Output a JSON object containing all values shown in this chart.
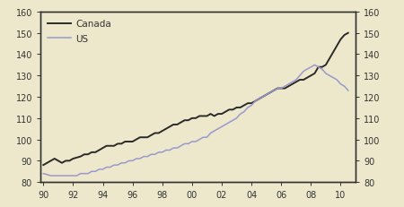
{
  "background_color": "#ede8cc",
  "canada_color": "#2a2a2a",
  "us_color": "#9999cc",
  "ylim": [
    80,
    160
  ],
  "yticks": [
    80,
    90,
    100,
    110,
    120,
    130,
    140,
    150,
    160
  ],
  "xticklabels": [
    "90",
    "92",
    "94",
    "96",
    "98",
    "00",
    "02",
    "04",
    "06",
    "08",
    "10"
  ],
  "legend_labels": [
    "Canada",
    "US"
  ],
  "canada_data": [
    [
      1990.0,
      88
    ],
    [
      1990.25,
      89
    ],
    [
      1990.5,
      90
    ],
    [
      1990.75,
      91
    ],
    [
      1991.0,
      90
    ],
    [
      1991.25,
      89
    ],
    [
      1991.5,
      90
    ],
    [
      1991.75,
      90
    ],
    [
      1992.0,
      91
    ],
    [
      1992.25,
      91.5
    ],
    [
      1992.5,
      92
    ],
    [
      1992.75,
      93
    ],
    [
      1993.0,
      93
    ],
    [
      1993.25,
      94
    ],
    [
      1993.5,
      94
    ],
    [
      1993.75,
      95
    ],
    [
      1994.0,
      96
    ],
    [
      1994.25,
      97
    ],
    [
      1994.5,
      97
    ],
    [
      1994.75,
      97
    ],
    [
      1995.0,
      98
    ],
    [
      1995.25,
      98
    ],
    [
      1995.5,
      99
    ],
    [
      1995.75,
      99
    ],
    [
      1996.0,
      99
    ],
    [
      1996.25,
      100
    ],
    [
      1996.5,
      101
    ],
    [
      1996.75,
      101
    ],
    [
      1997.0,
      101
    ],
    [
      1997.25,
      102
    ],
    [
      1997.5,
      103
    ],
    [
      1997.75,
      103
    ],
    [
      1998.0,
      104
    ],
    [
      1998.25,
      105
    ],
    [
      1998.5,
      106
    ],
    [
      1998.75,
      107
    ],
    [
      1999.0,
      107
    ],
    [
      1999.25,
      108
    ],
    [
      1999.5,
      109
    ],
    [
      1999.75,
      109
    ],
    [
      2000.0,
      110
    ],
    [
      2000.25,
      110
    ],
    [
      2000.5,
      111
    ],
    [
      2000.75,
      111
    ],
    [
      2001.0,
      111
    ],
    [
      2001.25,
      112
    ],
    [
      2001.5,
      111
    ],
    [
      2001.75,
      112
    ],
    [
      2002.0,
      112
    ],
    [
      2002.25,
      113
    ],
    [
      2002.5,
      114
    ],
    [
      2002.75,
      114
    ],
    [
      2003.0,
      115
    ],
    [
      2003.25,
      115
    ],
    [
      2003.5,
      116
    ],
    [
      2003.75,
      117
    ],
    [
      2004.0,
      117
    ],
    [
      2004.25,
      118
    ],
    [
      2004.5,
      119
    ],
    [
      2004.75,
      120
    ],
    [
      2005.0,
      121
    ],
    [
      2005.25,
      122
    ],
    [
      2005.5,
      123
    ],
    [
      2005.75,
      124
    ],
    [
      2006.0,
      124
    ],
    [
      2006.25,
      124
    ],
    [
      2006.5,
      125
    ],
    [
      2006.75,
      126
    ],
    [
      2007.0,
      127
    ],
    [
      2007.25,
      128
    ],
    [
      2007.5,
      128
    ],
    [
      2007.75,
      129
    ],
    [
      2008.0,
      130
    ],
    [
      2008.25,
      131
    ],
    [
      2008.5,
      134
    ],
    [
      2008.75,
      134
    ],
    [
      2009.0,
      135
    ],
    [
      2009.25,
      138
    ],
    [
      2009.5,
      141
    ],
    [
      2009.75,
      144
    ],
    [
      2010.0,
      147
    ],
    [
      2010.25,
      149
    ],
    [
      2010.5,
      150
    ]
  ],
  "us_data": [
    [
      1990.0,
      84
    ],
    [
      1990.25,
      83.5
    ],
    [
      1990.5,
      83
    ],
    [
      1990.75,
      83
    ],
    [
      1991.0,
      83
    ],
    [
      1991.25,
      83
    ],
    [
      1991.5,
      83
    ],
    [
      1991.75,
      83
    ],
    [
      1992.0,
      83
    ],
    [
      1992.25,
      83
    ],
    [
      1992.5,
      84
    ],
    [
      1992.75,
      84
    ],
    [
      1993.0,
      84
    ],
    [
      1993.25,
      85
    ],
    [
      1993.5,
      85
    ],
    [
      1993.75,
      86
    ],
    [
      1994.0,
      86
    ],
    [
      1994.25,
      87
    ],
    [
      1994.5,
      87
    ],
    [
      1994.75,
      88
    ],
    [
      1995.0,
      88
    ],
    [
      1995.25,
      89
    ],
    [
      1995.5,
      89
    ],
    [
      1995.75,
      90
    ],
    [
      1996.0,
      90
    ],
    [
      1996.25,
      91
    ],
    [
      1996.5,
      91
    ],
    [
      1996.75,
      92
    ],
    [
      1997.0,
      92
    ],
    [
      1997.25,
      93
    ],
    [
      1997.5,
      93
    ],
    [
      1997.75,
      94
    ],
    [
      1998.0,
      94
    ],
    [
      1998.25,
      95
    ],
    [
      1998.5,
      95
    ],
    [
      1998.75,
      96
    ],
    [
      1999.0,
      96
    ],
    [
      1999.25,
      97
    ],
    [
      1999.5,
      98
    ],
    [
      1999.75,
      98
    ],
    [
      2000.0,
      99
    ],
    [
      2000.25,
      99
    ],
    [
      2000.5,
      100
    ],
    [
      2000.75,
      101
    ],
    [
      2001.0,
      101
    ],
    [
      2001.25,
      103
    ],
    [
      2001.5,
      104
    ],
    [
      2001.75,
      105
    ],
    [
      2002.0,
      106
    ],
    [
      2002.25,
      107
    ],
    [
      2002.5,
      108
    ],
    [
      2002.75,
      109
    ],
    [
      2003.0,
      110
    ],
    [
      2003.25,
      112
    ],
    [
      2003.5,
      113
    ],
    [
      2003.75,
      115
    ],
    [
      2004.0,
      116
    ],
    [
      2004.25,
      118
    ],
    [
      2004.5,
      119
    ],
    [
      2004.75,
      120
    ],
    [
      2005.0,
      121
    ],
    [
      2005.25,
      122
    ],
    [
      2005.5,
      123
    ],
    [
      2005.75,
      124
    ],
    [
      2006.0,
      124
    ],
    [
      2006.25,
      125
    ],
    [
      2006.5,
      126
    ],
    [
      2006.75,
      127
    ],
    [
      2007.0,
      128
    ],
    [
      2007.25,
      130
    ],
    [
      2007.5,
      132
    ],
    [
      2007.75,
      133
    ],
    [
      2008.0,
      134
    ],
    [
      2008.25,
      135
    ],
    [
      2008.5,
      134
    ],
    [
      2008.75,
      133
    ],
    [
      2009.0,
      131
    ],
    [
      2009.25,
      130
    ],
    [
      2009.5,
      129
    ],
    [
      2009.75,
      128
    ],
    [
      2010.0,
      126
    ],
    [
      2010.25,
      125
    ],
    [
      2010.5,
      123
    ]
  ]
}
